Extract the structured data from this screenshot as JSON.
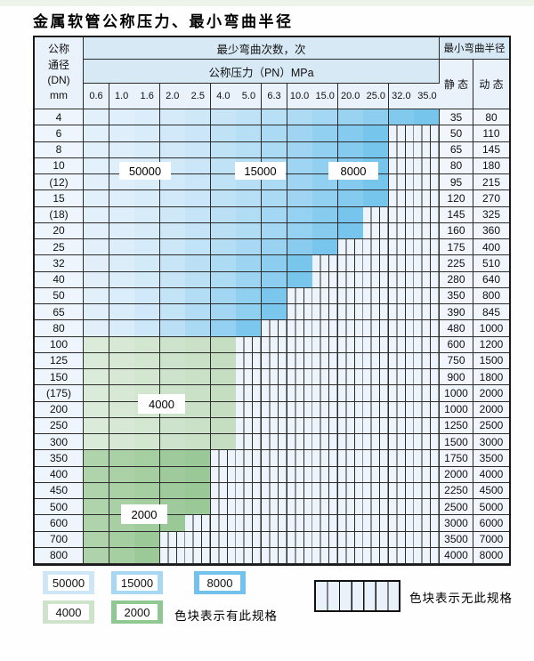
{
  "page": {
    "title": "金属软管公称压力、最小弯曲半径"
  },
  "table": {
    "header": {
      "dn_lines": [
        "公称",
        "通径",
        "(DN)",
        "mm"
      ],
      "bend_times": "最少弯曲次数，次",
      "min_radius": "最小弯曲半径",
      "pressure": "公称压力（PN）MPa",
      "static": "静 态",
      "dynamic": "动 态"
    }
  },
  "legend": {
    "items": [
      {
        "label": "50000",
        "color": "#cfe6f7"
      },
      {
        "label": "15000",
        "color": "#a7d7f3"
      },
      {
        "label": "8000",
        "color": "#72c2ec"
      },
      {
        "label": "4000",
        "color": "#cde4cb"
      },
      {
        "label": "2000",
        "color": "#8fc893"
      }
    ],
    "has_spec_note": "色块表示有此规格",
    "no_spec_note": "色块表示无此规格",
    "hatch_fill": "#e9f1fa"
  },
  "colors": {
    "grid_line": "#2b2b2b",
    "hatch_cell_bg": "#eef4fb",
    "blue_ramp": [
      "#e3f0fb",
      "#6fc2ec"
    ],
    "green4000_ramp": [
      "#ddecdb",
      "#c3ddc0"
    ],
    "green2000_ramp": [
      "#b2d5ae",
      "#97c694"
    ]
  },
  "chart_data": {
    "type": "table",
    "title": "金属软管公称压力、最小弯曲半径",
    "pressure_columns_MPa": [
      "0.6",
      "1.0",
      "1.6",
      "2.0",
      "2.5",
      "4.0",
      "5.0",
      "6.3",
      "10.0",
      "15.0",
      "20.0",
      "25.0",
      "32.0",
      "35.0"
    ],
    "radius_columns": [
      "静 态",
      "动 态"
    ],
    "cycle_region_labels": [
      "50000",
      "15000",
      "8000",
      "4000",
      "2000"
    ],
    "hatch_meaning": "色块表示无此规格",
    "color_meaning": "色块表示有此规格",
    "rows": [
      {
        "dn": "4",
        "rated_cols": 14,
        "palette": "blue",
        "static": "35",
        "dynamic": "80"
      },
      {
        "dn": "6",
        "rated_cols": 12,
        "palette": "blue",
        "static": "50",
        "dynamic": "110"
      },
      {
        "dn": "8",
        "rated_cols": 12,
        "palette": "blue",
        "static": "65",
        "dynamic": "145"
      },
      {
        "dn": "10",
        "rated_cols": 12,
        "palette": "blue",
        "static": "80",
        "dynamic": "180"
      },
      {
        "dn": "(12)",
        "rated_cols": 12,
        "palette": "blue",
        "static": "95",
        "dynamic": "215"
      },
      {
        "dn": "15",
        "rated_cols": 12,
        "palette": "blue",
        "static": "120",
        "dynamic": "270"
      },
      {
        "dn": "(18)",
        "rated_cols": 11,
        "palette": "blue",
        "static": "145",
        "dynamic": "325"
      },
      {
        "dn": "20",
        "rated_cols": 11,
        "palette": "blue",
        "static": "160",
        "dynamic": "360"
      },
      {
        "dn": "25",
        "rated_cols": 10,
        "palette": "blue",
        "static": "175",
        "dynamic": "400"
      },
      {
        "dn": "32",
        "rated_cols": 9,
        "palette": "blue",
        "static": "225",
        "dynamic": "510"
      },
      {
        "dn": "40",
        "rated_cols": 9,
        "palette": "blue",
        "static": "280",
        "dynamic": "640"
      },
      {
        "dn": "50",
        "rated_cols": 8,
        "palette": "blue",
        "static": "350",
        "dynamic": "800"
      },
      {
        "dn": "65",
        "rated_cols": 8,
        "palette": "blue",
        "static": "390",
        "dynamic": "845"
      },
      {
        "dn": "80",
        "rated_cols": 7,
        "palette": "blue",
        "static": "480",
        "dynamic": "1000"
      },
      {
        "dn": "100",
        "rated_cols": 6,
        "palette": "green4000",
        "static": "600",
        "dynamic": "1200"
      },
      {
        "dn": "125",
        "rated_cols": 6,
        "palette": "green4000",
        "static": "750",
        "dynamic": "1500"
      },
      {
        "dn": "150",
        "rated_cols": 6,
        "palette": "green4000",
        "static": "900",
        "dynamic": "1800"
      },
      {
        "dn": "(175)",
        "rated_cols": 6,
        "palette": "green4000",
        "static": "1000",
        "dynamic": "2000"
      },
      {
        "dn": "200",
        "rated_cols": 6,
        "palette": "green4000",
        "static": "1000",
        "dynamic": "2000"
      },
      {
        "dn": "250",
        "rated_cols": 6,
        "palette": "green4000",
        "static": "1250",
        "dynamic": "2500"
      },
      {
        "dn": "300",
        "rated_cols": 6,
        "palette": "green4000",
        "static": "1500",
        "dynamic": "3000"
      },
      {
        "dn": "350",
        "rated_cols": 5,
        "palette": "green2000",
        "static": "1750",
        "dynamic": "3500"
      },
      {
        "dn": "400",
        "rated_cols": 5,
        "palette": "green2000",
        "static": "2000",
        "dynamic": "4000"
      },
      {
        "dn": "450",
        "rated_cols": 5,
        "palette": "green2000",
        "static": "2250",
        "dynamic": "4500"
      },
      {
        "dn": "500",
        "rated_cols": 5,
        "palette": "green2000",
        "static": "2500",
        "dynamic": "5000"
      },
      {
        "dn": "600",
        "rated_cols": 4,
        "palette": "green2000",
        "static": "3000",
        "dynamic": "6000"
      },
      {
        "dn": "700",
        "rated_cols": 3,
        "palette": "green2000",
        "static": "3500",
        "dynamic": "7000"
      },
      {
        "dn": "800",
        "rated_cols": 3,
        "palette": "green2000",
        "static": "4000",
        "dynamic": "8000"
      }
    ]
  }
}
